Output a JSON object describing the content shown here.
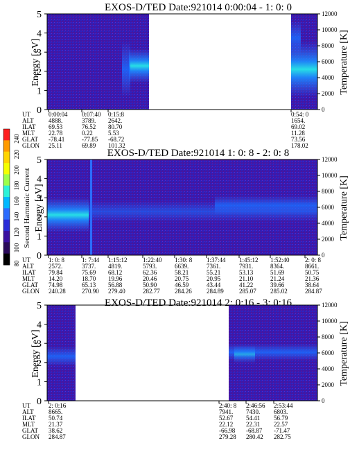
{
  "panels": [
    {
      "title": "EXOS-D/TED   Date:921014  0:00:04 - 1: 0: 0",
      "y_ticks": [
        "5",
        "4",
        "3",
        "2",
        "1",
        "0"
      ],
      "y_label": "Energy [eV]",
      "temp_ticks": [
        "12000",
        "10000",
        "8000",
        "6000",
        "4000",
        "2000",
        "0"
      ],
      "temp_label": "Temperature [K]",
      "row_labels": [
        "UT",
        "ALT",
        "ILAT",
        "MLT",
        "GLAT",
        "GLON"
      ],
      "columns": [
        {
          "vals": [
            "0:00:04",
            "4888.",
            "69.53",
            "22.78",
            "-78.41",
            "25.11"
          ]
        },
        {
          "vals": [
            "0:07:40",
            "3789.",
            "76.52",
            "0.22",
            "-77.85",
            "69.89"
          ]
        },
        {
          "vals": [
            "0:15:8",
            "2642.",
            "80.70",
            "5.53",
            "-68.72",
            "101.32"
          ]
        },
        {
          "vals": [
            "0:54: 0",
            "1654.",
            "69.02",
            "11.28",
            "73.56",
            "178.02"
          ]
        }
      ]
    },
    {
      "title": "EXOS-D/TED   Date:921014  1: 0: 8 - 2: 0: 8",
      "y_ticks": [
        "5",
        "4",
        "3",
        "2",
        "1",
        "0"
      ],
      "y_label": "Energy [eV]",
      "temp_ticks": [
        "12000",
        "10000",
        "8000",
        "6000",
        "4000",
        "2000",
        "0"
      ],
      "temp_label": "Temperature [K]",
      "row_labels": [
        "UT",
        "ALT",
        "ILAT",
        "MLT",
        "GLAT",
        "GLON"
      ],
      "columns": [
        {
          "vals": [
            "1: 0: 8",
            "2572.",
            "79.84",
            "14.20",
            "74.98",
            "240.28"
          ]
        },
        {
          "vals": [
            "1: 7:44",
            "3737.",
            "75.69",
            "18.70",
            "65.13",
            "270.90"
          ]
        },
        {
          "vals": [
            "1:15:12",
            "4819.",
            "68.12",
            "19.96",
            "56.88",
            "279.40"
          ]
        },
        {
          "vals": [
            "1:22:40",
            "5793.",
            "62.36",
            "20.46",
            "50.90",
            "282.77"
          ]
        },
        {
          "vals": [
            "1:30: 8",
            "6639.",
            "58.21",
            "20.75",
            "46.59",
            "284.26"
          ]
        },
        {
          "vals": [
            "1:37:44",
            "7361.",
            "55.21",
            "20.95",
            "43.44",
            "284.89"
          ]
        },
        {
          "vals": [
            "1:45:12",
            "7931.",
            "53.13",
            "21.10",
            "41.22",
            "285.07"
          ]
        },
        {
          "vals": [
            "1:52:40",
            "8364.",
            "51.69",
            "21.24",
            "39.66",
            "285.02"
          ]
        },
        {
          "vals": [
            "2: 0: 8",
            "8661.",
            "50.75",
            "21.36",
            "38.64",
            "284.87"
          ]
        }
      ]
    },
    {
      "title": "EXOS-D/TED   Date:921014  2: 0:16 - 3: 0:16",
      "y_ticks": [
        "5",
        "4",
        "3",
        "2",
        "1",
        "0"
      ],
      "y_label": "Energy [eV]",
      "temp_ticks": [
        "12000",
        "10000",
        "8000",
        "6000",
        "4000",
        "2000",
        "0"
      ],
      "temp_label": "Temperature [K]",
      "row_labels": [
        "UT",
        "ALT",
        "ILAT",
        "MLT",
        "GLAT",
        "GLON"
      ],
      "columns": [
        {
          "vals": [
            "2: 0:16",
            "8665.",
            "50.74",
            "21.37",
            "38.62",
            "284.87"
          ]
        },
        {
          "vals": [
            "2:40: 8",
            "7941.",
            "52.67",
            "22.12",
            "-66.98",
            "279.28"
          ]
        },
        {
          "vals": [
            "2:46:56",
            "7430.",
            "54.41",
            "22.31",
            "-68.87",
            "280.42"
          ]
        },
        {
          "vals": [
            "2:53:44",
            "6803.",
            "56.79",
            "22.57",
            "-71.47",
            "282.75"
          ]
        }
      ]
    }
  ],
  "colorbar": {
    "label": "Second Harmonic Current",
    "ticks": [
      "240",
      "220",
      "200",
      "180",
      "160",
      "140",
      "120",
      "100",
      "80"
    ],
    "colors": [
      "#ff2020",
      "#ff9a00",
      "#ffd400",
      "#f4ff00",
      "#9cff4a",
      "#2cf2d8",
      "#00b8ff",
      "#2c6cff",
      "#2a2cd8",
      "#3a10a0",
      "#2a0a5a",
      "#000000"
    ]
  },
  "chart_data": [
    {
      "type": "heatmap",
      "title": "EXOS-D/TED   Date:921014  0:00:04 - 1: 0: 0",
      "ylabel": "Energy [eV]",
      "ylabel_right": "Temperature [K]",
      "ylim": [
        0,
        5
      ],
      "ylim_right": [
        0,
        12000
      ],
      "x": [
        "0:00:04",
        "0:07:40",
        "0:15:8",
        "0:54: 0"
      ],
      "data_gaps": [
        [
          "0:15:8",
          "0:54: 0"
        ]
      ]
    },
    {
      "type": "heatmap",
      "title": "EXOS-D/TED   Date:921014  1: 0: 8 - 2: 0: 8",
      "ylabel": "Energy [eV]",
      "ylabel_right": "Temperature [K]",
      "ylim": [
        0,
        5
      ],
      "ylim_right": [
        0,
        12000
      ],
      "x": [
        "1: 0: 8",
        "1: 7:44",
        "1:15:12",
        "1:22:40",
        "1:30: 8",
        "1:37:44",
        "1:45:12",
        "1:52:40",
        "2: 0: 8"
      ],
      "colorbar_label": "Second Harmonic Current",
      "colorbar_range": [
        80,
        240
      ]
    },
    {
      "type": "heatmap",
      "title": "EXOS-D/TED   Date:921014  2: 0:16 - 3: 0:16",
      "ylabel": "Energy [eV]",
      "ylabel_right": "Temperature [K]",
      "ylim": [
        0,
        5
      ],
      "ylim_right": [
        0,
        12000
      ],
      "x": [
        "2: 0:16",
        "2:40: 8",
        "2:46:56",
        "2:53:44"
      ],
      "data_gaps": [
        [
          "2: 0:16",
          "2:40: 8"
        ]
      ]
    }
  ]
}
